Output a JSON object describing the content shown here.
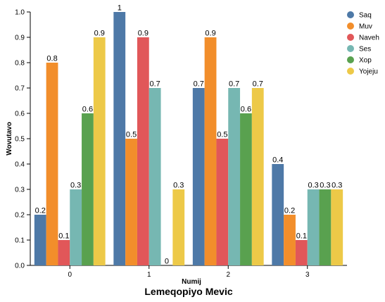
{
  "chart_data": {
    "type": "bar",
    "title": "Lemeqopiyo Mevic",
    "xlabel": "Numij",
    "ylabel": "Wovutavo",
    "ylim": [
      0,
      1.0
    ],
    "yticks": [
      "0.0",
      "0.1",
      "0.2",
      "0.3",
      "0.4",
      "0.5",
      "0.6",
      "0.7",
      "0.8",
      "0.9",
      "1.0"
    ],
    "categories": [
      "0",
      "1",
      "2",
      "3"
    ],
    "legend_position": "top-right",
    "series": [
      {
        "name": "Saq",
        "color": "#4e79a7",
        "values": [
          0.2,
          1.0,
          0.7,
          0.4
        ],
        "labels": [
          "0.2",
          "1",
          "0.7",
          "0.4"
        ]
      },
      {
        "name": "Muv",
        "color": "#f28e2b",
        "values": [
          0.8,
          0.5,
          0.9,
          0.2
        ],
        "labels": [
          "0.8",
          "0.5",
          "0.9",
          "0.2"
        ]
      },
      {
        "name": "Naveh",
        "color": "#e15759",
        "values": [
          0.1,
          0.9,
          0.5,
          0.1
        ],
        "labels": [
          "0.1",
          "0.9",
          "0.5",
          "0.1"
        ]
      },
      {
        "name": "Ses",
        "color": "#76b7b2",
        "values": [
          0.3,
          0.7,
          0.7,
          0.3
        ],
        "labels": [
          "0.3",
          "0.7",
          "0.7",
          "0.3"
        ]
      },
      {
        "name": "Xop",
        "color": "#59a14f",
        "values": [
          0.6,
          0.0,
          0.6,
          0.3
        ],
        "labels": [
          "0.6",
          "0",
          "0.6",
          "0.3"
        ]
      },
      {
        "name": "Yojeju",
        "color": "#edc948",
        "values": [
          0.9,
          0.3,
          0.7,
          0.3
        ],
        "labels": [
          "0.9",
          "0.3",
          "0.7",
          "0.3"
        ]
      }
    ]
  }
}
